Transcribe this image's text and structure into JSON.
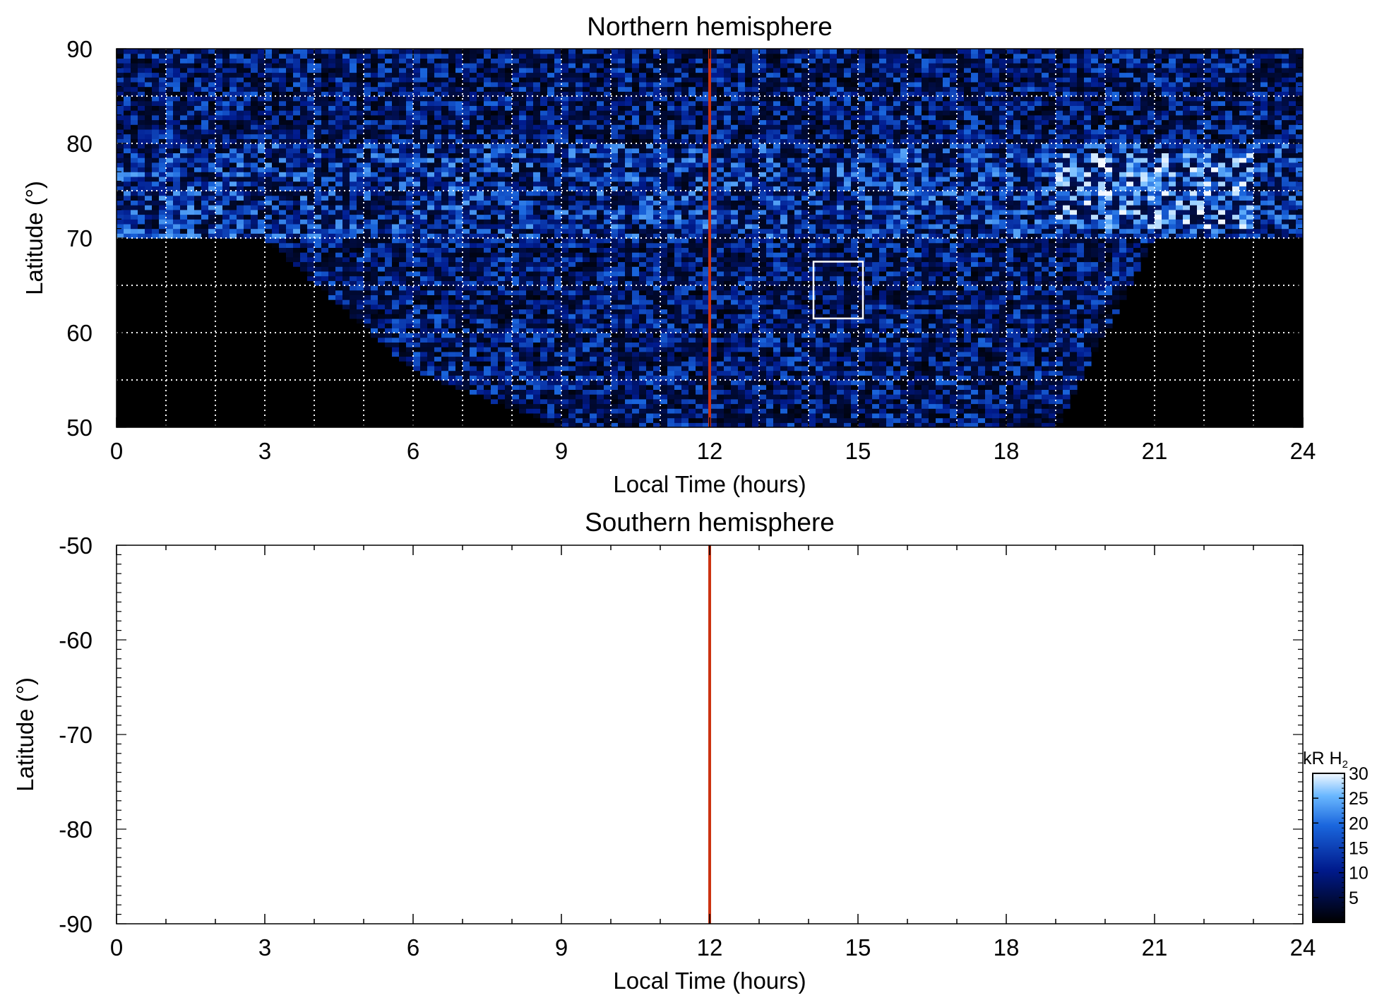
{
  "chart_data": [
    {
      "type": "heatmap",
      "title": "Northern hemisphere",
      "xlabel": "Local Time (hours)",
      "ylabel": "Latitude (°)",
      "xlim": [
        0,
        24
      ],
      "ylim": [
        50,
        90
      ],
      "x_ticks": [
        "0",
        "3",
        "6",
        "9",
        "12",
        "15",
        "18",
        "21",
        "24"
      ],
      "y_ticks": [
        "50",
        "60",
        "70",
        "80",
        "90"
      ],
      "grid": true,
      "colormap": "black-blue-white",
      "value_range_kR": [
        0,
        30
      ],
      "noon_line_local_time": 12,
      "noon_line_color": "#cc3311",
      "auroral_oval": {
        "latitude_range": [
          70,
          80
        ],
        "brightest_local_time_range": [
          19,
          23
        ],
        "brightest_latitude": 75,
        "peak_intensity_kR": 28
      },
      "observed_region": {
        "latitude_range_at_noon": [
          50,
          90
        ],
        "lower_edge_latitude": {
          "3": 70,
          "6": 56,
          "9": 50,
          "12": 50,
          "15": 50,
          "18": 50,
          "19": 50,
          "20": 60,
          "21": 70
        }
      },
      "highlight_box": {
        "local_time": [
          14.1,
          15.1
        ],
        "latitude": [
          61.5,
          67.5
        ],
        "color": "#ffffff"
      }
    },
    {
      "type": "heatmap",
      "title": "Southern hemisphere",
      "xlabel": "Local Time (hours)",
      "ylabel": "Latitude (°)",
      "xlim": [
        0,
        24
      ],
      "ylim": [
        -90,
        -50
      ],
      "x_ticks": [
        "0",
        "3",
        "6",
        "9",
        "12",
        "15",
        "18",
        "21",
        "24"
      ],
      "y_ticks": [
        "-50",
        "-60",
        "-70",
        "-80",
        "-90"
      ],
      "grid": false,
      "data_present": false,
      "noon_line_local_time": 12,
      "noon_line_color": "#cc3311"
    }
  ],
  "colorbar": {
    "label": "kR H",
    "label_subscript": "2",
    "ticks": [
      "5",
      "10",
      "15",
      "20",
      "25",
      "30"
    ],
    "tick_values": [
      5,
      10,
      15,
      20,
      25,
      30
    ],
    "range": [
      0,
      30
    ]
  }
}
